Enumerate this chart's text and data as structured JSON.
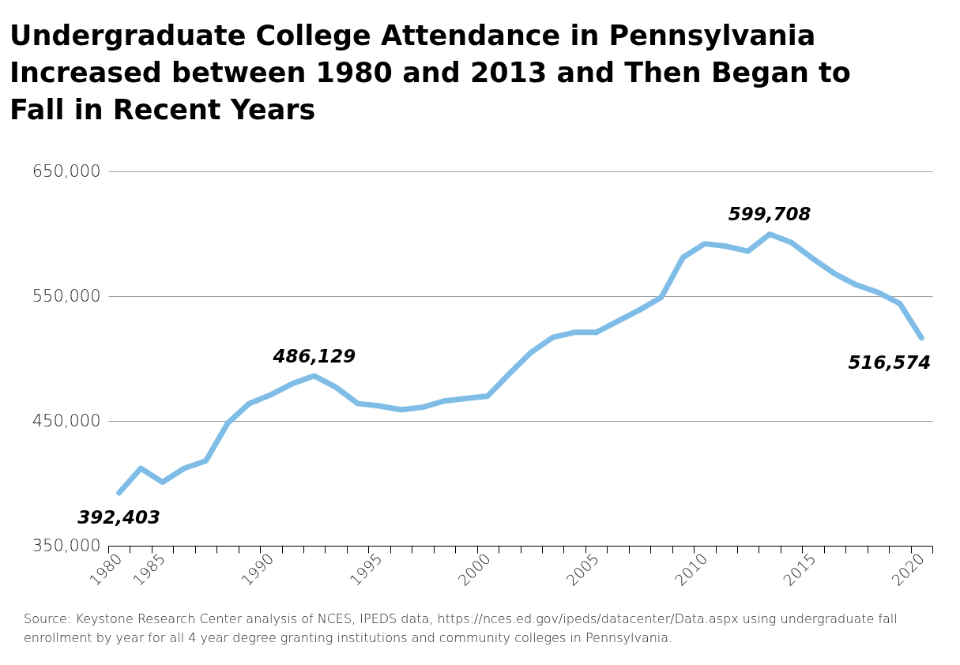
{
  "chart_data": {
    "type": "line",
    "title": "Undergraduate College Attendance in Pennsylvania Increased between 1980 and 2013 and Then Began to Fall in Recent Years",
    "categories": [
      "1980",
      null,
      "1985",
      null,
      null,
      null,
      null,
      "1990",
      null,
      null,
      null,
      null,
      "1995",
      null,
      null,
      null,
      null,
      "2000",
      null,
      null,
      null,
      null,
      "2005",
      null,
      null,
      null,
      null,
      "2010",
      null,
      null,
      null,
      null,
      "2015",
      null,
      null,
      null,
      null,
      "2020"
    ],
    "series": [
      {
        "color": "#7fbde7",
        "values": [
          392403,
          412000,
          401000,
          412000,
          418000,
          448000,
          464000,
          471000,
          480000,
          486129,
          477000,
          464000,
          462000,
          459000,
          461000,
          466000,
          468000,
          470000,
          488000,
          505000,
          517000,
          521000,
          521000,
          530000,
          539000,
          549000,
          581000,
          592000,
          590000,
          586000,
          599708,
          593000,
          580000,
          568000,
          559000,
          553000,
          544000,
          516574
        ],
        "value_labels": [
          "392,403",
          null,
          null,
          null,
          null,
          null,
          null,
          null,
          null,
          "486,129",
          null,
          null,
          null,
          null,
          null,
          null,
          null,
          null,
          null,
          null,
          null,
          null,
          null,
          null,
          null,
          null,
          null,
          null,
          null,
          null,
          "599,708",
          null,
          null,
          null,
          null,
          null,
          null,
          "516,574"
        ]
      }
    ],
    "ylim": [
      350000,
      650000
    ],
    "yticks": [
      {
        "value": 350000,
        "label": "350,000"
      },
      {
        "value": 450000,
        "label": "450,000"
      },
      {
        "value": 550000,
        "label": "550,000"
      },
      {
        "value": 650000,
        "label": "650,000"
      }
    ],
    "grid": "y",
    "marker": "none",
    "line_style": "solid",
    "annotations": [
      "Source: Keystone Research Center analysis of NCES, IPEDS data, https://nces.ed.gov/ipeds/datacenter/Data.aspx using undergraduate fall enrollment by year for all 4 year degree granting institutions and community colleges in Pennsylvania."
    ]
  }
}
